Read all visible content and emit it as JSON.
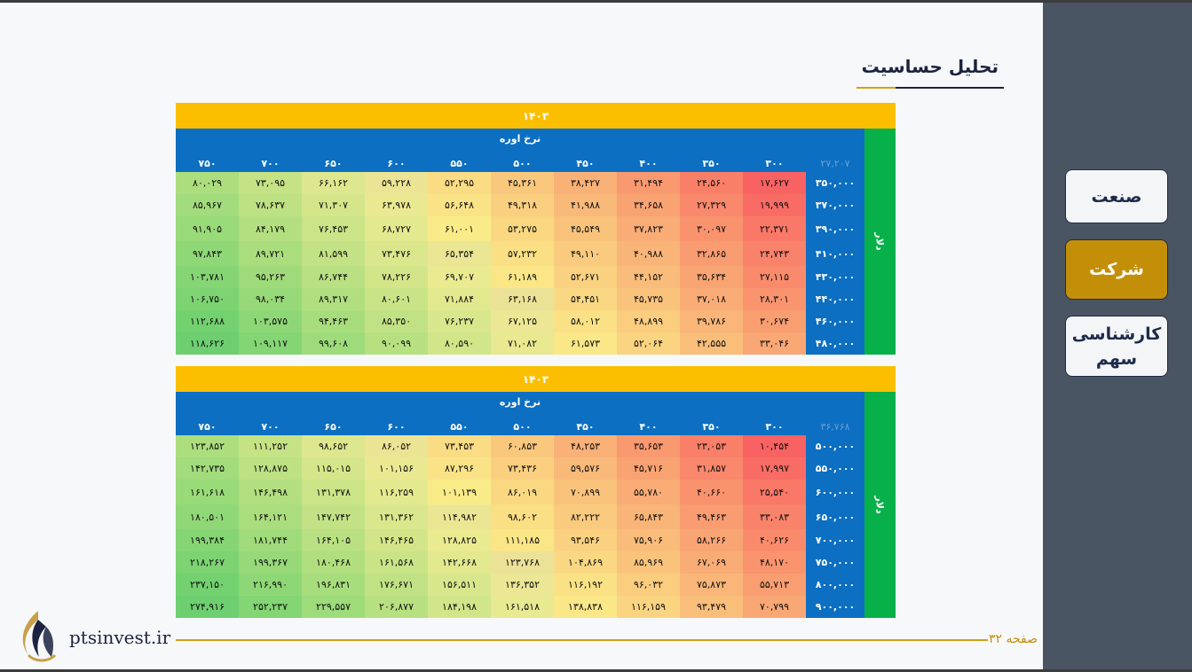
{
  "title": "تحلیل حساسیت",
  "nav": {
    "industry": "صنعت",
    "company": "شرکت",
    "analysis_line1": "کارشناسی",
    "analysis_line2": "سهم"
  },
  "footer": {
    "site": "ptsinvest.ir",
    "page_label": "صفحه ۳۲"
  },
  "colors": {
    "year_band": "#fcbf00",
    "header_blue": "#0c6fc2",
    "side_green": "#08b04a",
    "accent_gold": "#c48f08"
  },
  "tables": [
    {
      "year": "۱۴۰۳",
      "col_title": "نرخ اوره",
      "row_title": "دلار",
      "corner": "۲۷,۲۰۷",
      "columns": [
        "۳۰۰",
        "۳۵۰",
        "۴۰۰",
        "۴۵۰",
        "۵۰۰",
        "۵۵۰",
        "۶۰۰",
        "۶۵۰",
        "۷۰۰",
        "۷۵۰"
      ],
      "rows": [
        {
          "label": "۳۵۰,۰۰۰",
          "values": [
            "۱۷,۶۲۷",
            "۲۴,۵۶۰",
            "۳۱,۴۹۴",
            "۳۸,۴۲۷",
            "۴۵,۳۶۱",
            "۵۲,۲۹۵",
            "۵۹,۲۲۸",
            "۶۶,۱۶۲",
            "۷۳,۰۹۵",
            "۸۰,۰۲۹"
          ]
        },
        {
          "label": "۳۷۰,۰۰۰",
          "values": [
            "۱۹,۹۹۹",
            "۲۷,۳۲۹",
            "۳۴,۶۵۸",
            "۴۱,۹۸۸",
            "۴۹,۳۱۸",
            "۵۶,۶۴۸",
            "۶۳,۹۷۸",
            "۷۱,۳۰۷",
            "۷۸,۶۳۷",
            "۸۵,۹۶۷"
          ]
        },
        {
          "label": "۳۹۰,۰۰۰",
          "values": [
            "۲۲,۳۷۱",
            "۳۰,۰۹۷",
            "۳۷,۸۲۳",
            "۴۵,۵۴۹",
            "۵۳,۲۷۵",
            "۶۱,۰۰۱",
            "۶۸,۷۲۷",
            "۷۶,۴۵۳",
            "۸۴,۱۷۹",
            "۹۱,۹۰۵"
          ]
        },
        {
          "label": "۴۱۰,۰۰۰",
          "values": [
            "۲۴,۷۴۳",
            "۳۲,۸۶۵",
            "۴۰,۹۸۸",
            "۴۹,۱۱۰",
            "۵۷,۲۳۲",
            "۶۵,۳۵۴",
            "۷۳,۴۷۶",
            "۸۱,۵۹۹",
            "۸۹,۷۲۱",
            "۹۷,۸۴۳"
          ]
        },
        {
          "label": "۴۳۰,۰۰۰",
          "values": [
            "۲۷,۱۱۵",
            "۳۵,۶۳۴",
            "۴۴,۱۵۲",
            "۵۲,۶۷۱",
            "۶۱,۱۸۹",
            "۶۹,۷۰۷",
            "۷۸,۲۲۶",
            "۸۶,۷۴۴",
            "۹۵,۲۶۳",
            "۱۰۳,۷۸۱"
          ]
        },
        {
          "label": "۴۴۰,۰۰۰",
          "values": [
            "۲۸,۳۰۱",
            "۳۷,۰۱۸",
            "۴۵,۷۳۵",
            "۵۴,۴۵۱",
            "۶۳,۱۶۸",
            "۷۱,۸۸۴",
            "۸۰,۶۰۱",
            "۸۹,۳۱۷",
            "۹۸,۰۳۴",
            "۱۰۶,۷۵۰"
          ]
        },
        {
          "label": "۴۶۰,۰۰۰",
          "values": [
            "۳۰,۶۷۴",
            "۳۹,۷۸۶",
            "۴۸,۸۹۹",
            "۵۸,۰۱۲",
            "۶۷,۱۲۵",
            "۷۶,۲۳۷",
            "۸۵,۳۵۰",
            "۹۴,۴۶۳",
            "۱۰۳,۵۷۵",
            "۱۱۲,۶۸۸"
          ]
        },
        {
          "label": "۴۸۰,۰۰۰",
          "values": [
            "۳۳,۰۴۶",
            "۴۲,۵۵۵",
            "۵۲,۰۶۴",
            "۶۱,۵۷۳",
            "۷۱,۰۸۲",
            "۸۰,۵۹۰",
            "۹۰,۰۹۹",
            "۹۹,۶۰۸",
            "۱۰۹,۱۱۷",
            "۱۱۸,۶۲۶"
          ]
        }
      ]
    },
    {
      "year": "۱۴۰۳",
      "col_title": "نرخ اوره",
      "row_title": "دلار",
      "corner": "۳۶,۷۶۸",
      "columns": [
        "۳۰۰",
        "۳۵۰",
        "۴۰۰",
        "۴۵۰",
        "۵۰۰",
        "۵۵۰",
        "۶۰۰",
        "۶۵۰",
        "۷۰۰",
        "۷۵۰"
      ],
      "rows": [
        {
          "label": "۵۰۰,۰۰۰",
          "values": [
            "۱۰,۴۵۴",
            "۲۳,۰۵۳",
            "۳۵,۶۵۳",
            "۴۸,۲۵۳",
            "۶۰,۸۵۳",
            "۷۳,۴۵۳",
            "۸۶,۰۵۲",
            "۹۸,۶۵۲",
            "۱۱۱,۲۵۲",
            "۱۲۳,۸۵۲"
          ]
        },
        {
          "label": "۵۵۰,۰۰۰",
          "values": [
            "۱۷,۹۹۷",
            "۳۱,۸۵۷",
            "۴۵,۷۱۶",
            "۵۹,۵۷۶",
            "۷۳,۴۳۶",
            "۸۷,۲۹۶",
            "۱۰۱,۱۵۶",
            "۱۱۵,۰۱۵",
            "۱۲۸,۸۷۵",
            "۱۴۲,۷۳۵"
          ]
        },
        {
          "label": "۶۰۰,۰۰۰",
          "values": [
            "۲۵,۵۴۰",
            "۴۰,۶۶۰",
            "۵۵,۷۸۰",
            "۷۰,۸۹۹",
            "۸۶,۰۱۹",
            "۱۰۱,۱۳۹",
            "۱۱۶,۲۵۹",
            "۱۳۱,۳۷۸",
            "۱۴۶,۴۹۸",
            "۱۶۱,۶۱۸"
          ]
        },
        {
          "label": "۶۵۰,۰۰۰",
          "values": [
            "۳۳,۰۸۳",
            "۴۹,۴۶۳",
            "۶۵,۸۴۳",
            "۸۲,۲۲۲",
            "۹۸,۶۰۲",
            "۱۱۴,۹۸۲",
            "۱۳۱,۳۶۲",
            "۱۴۷,۷۴۲",
            "۱۶۴,۱۲۱",
            "۱۸۰,۵۰۱"
          ]
        },
        {
          "label": "۷۰۰,۰۰۰",
          "values": [
            "۴۰,۶۲۶",
            "۵۸,۲۶۶",
            "۷۵,۹۰۶",
            "۹۳,۵۴۶",
            "۱۱۱,۱۸۵",
            "۱۲۸,۸۲۵",
            "۱۴۶,۴۶۵",
            "۱۶۴,۱۰۵",
            "۱۸۱,۷۴۴",
            "۱۹۹,۳۸۴"
          ]
        },
        {
          "label": "۷۵۰,۰۰۰",
          "values": [
            "۴۸,۱۷۰",
            "۶۷,۰۶۹",
            "۸۵,۹۶۹",
            "۱۰۴,۸۶۹",
            "۱۲۳,۷۶۸",
            "۱۴۲,۶۶۸",
            "۱۶۱,۵۶۸",
            "۱۸۰,۴۶۸",
            "۱۹۹,۳۶۷",
            "۲۱۸,۲۶۷"
          ]
        },
        {
          "label": "۸۰۰,۰۰۰",
          "values": [
            "۵۵,۷۱۳",
            "۷۵,۸۷۳",
            "۹۶,۰۳۲",
            "۱۱۶,۱۹۲",
            "۱۳۶,۳۵۲",
            "۱۵۶,۵۱۱",
            "۱۷۶,۶۷۱",
            "۱۹۶,۸۳۱",
            "۲۱۶,۹۹۰",
            "۲۳۷,۱۵۰"
          ]
        },
        {
          "label": "۹۰۰,۰۰۰",
          "values": [
            "۷۰,۷۹۹",
            "۹۳,۴۷۹",
            "۱۱۶,۱۵۹",
            "۱۳۸,۸۳۸",
            "۱۶۱,۵۱۸",
            "۱۸۴,۱۹۸",
            "۲۰۶,۸۷۷",
            "۲۲۹,۵۵۷",
            "۲۵۲,۲۳۷",
            "۲۷۴,۹۱۶"
          ]
        }
      ]
    }
  ]
}
